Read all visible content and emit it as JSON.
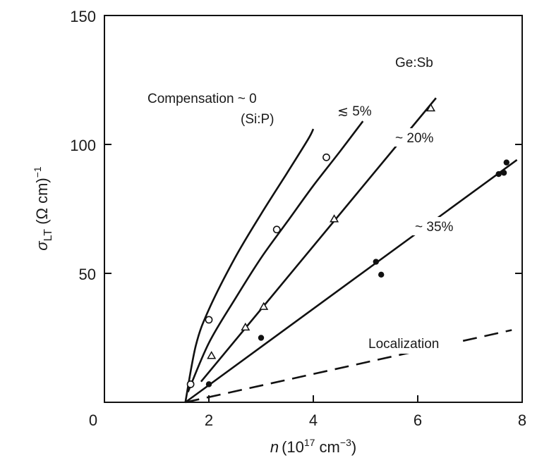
{
  "chart_data": {
    "type": "scatter",
    "title": "",
    "xlabel": {
      "italic": "n",
      "base": "(10",
      "sup1": "17",
      "mid": " cm",
      "sup2": "−3",
      "end": ")"
    },
    "ylabel": {
      "sigma": "σ",
      "sub": "LT",
      "mid": " (Ω cm)",
      "sup": "−1"
    },
    "xlim": [
      0,
      8
    ],
    "ylim": [
      0,
      150
    ],
    "x_ticks": [
      "0",
      "2",
      "4",
      "6",
      "8"
    ],
    "y_ticks": [
      "50",
      "100",
      "150"
    ],
    "x_tick_values": [
      0,
      2,
      4,
      6,
      8
    ],
    "y_tick_values": [
      50,
      100,
      150
    ],
    "annotations": {
      "compensation": "Compensation ~ 0",
      "sip": "(Si:P)",
      "gesb": "Ge:Sb",
      "le5": "≲ 5%",
      "c20": "~ 20%",
      "c35": "~ 35%",
      "localization": "Localization"
    },
    "series": [
      {
        "name": "≲ 5%",
        "marker": "open-circle",
        "points": [
          [
            1.65,
            7
          ],
          [
            2.0,
            32
          ],
          [
            3.3,
            67
          ],
          [
            4.25,
            95
          ]
        ]
      },
      {
        "name": "~ 20%",
        "marker": "open-triangle",
        "points": [
          [
            2.05,
            18
          ],
          [
            2.7,
            29
          ],
          [
            3.05,
            37
          ],
          [
            4.4,
            71
          ],
          [
            6.25,
            114
          ]
        ]
      },
      {
        "name": "~ 35%",
        "marker": "filled-circle",
        "points": [
          [
            2.0,
            7
          ],
          [
            3.0,
            25
          ],
          [
            5.2,
            54.5
          ],
          [
            5.3,
            49.5
          ],
          [
            7.55,
            88.5
          ],
          [
            7.65,
            89
          ],
          [
            7.7,
            93
          ]
        ]
      }
    ],
    "curves": [
      {
        "name": "Compensation ~ 0 (Si:P)",
        "style": "solid",
        "points": [
          [
            1.55,
            0
          ],
          [
            1.75,
            22
          ],
          [
            2.0,
            36
          ],
          [
            2.5,
            56
          ],
          [
            3.0,
            73
          ],
          [
            3.5,
            89
          ],
          [
            3.9,
            102
          ],
          [
            4.0,
            106
          ]
        ]
      },
      {
        "name": "≲ 5% fit",
        "style": "solid",
        "points": [
          [
            1.6,
            4
          ],
          [
            2.0,
            23
          ],
          [
            2.5,
            40
          ],
          [
            3.0,
            56
          ],
          [
            3.5,
            70
          ],
          [
            4.0,
            84
          ],
          [
            4.5,
            97
          ],
          [
            4.95,
            109
          ]
        ]
      },
      {
        "name": "~ 20% fit",
        "style": "solid",
        "points": [
          [
            1.85,
            8
          ],
          [
            6.35,
            118
          ]
        ]
      },
      {
        "name": "~ 35% fit",
        "style": "solid",
        "points": [
          [
            1.55,
            0
          ],
          [
            7.9,
            94
          ]
        ]
      },
      {
        "name": "Localization",
        "style": "dashed",
        "points": [
          [
            1.55,
            0
          ],
          [
            7.8,
            28
          ]
        ]
      }
    ]
  }
}
